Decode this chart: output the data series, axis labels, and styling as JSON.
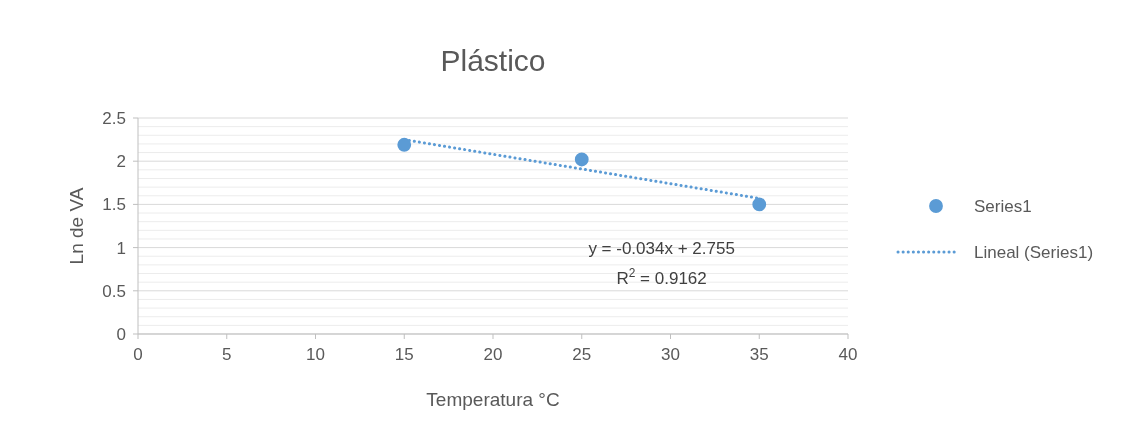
{
  "chart_data": {
    "type": "scatter",
    "title": "Plástico",
    "xlabel": "Temperatura °C",
    "ylabel": "Ln de VA",
    "xlim": [
      0,
      40
    ],
    "xticks": [
      0,
      5,
      10,
      15,
      20,
      25,
      30,
      35,
      40
    ],
    "ylim": [
      0,
      2.5
    ],
    "yticks": [
      0,
      {
        "value": 0.1,
        "label": null
      },
      {
        "value": 0.2,
        "label": null
      },
      {
        "value": 0.3,
        "label": null
      },
      {
        "value": 0.4,
        "label": null
      },
      0.5,
      {
        "value": 0.6,
        "label": null
      },
      {
        "value": 0.7,
        "label": null
      },
      {
        "value": 0.8,
        "label": null
      },
      {
        "value": 0.9,
        "label": null
      },
      1,
      {
        "value": 1.1,
        "label": null
      },
      {
        "value": 1.2,
        "label": null
      },
      {
        "value": 1.3,
        "label": null
      },
      {
        "value": 1.4,
        "label": null
      },
      1.5,
      {
        "value": 1.6,
        "label": null
      },
      {
        "value": 1.7,
        "label": null
      },
      {
        "value": 1.8,
        "label": null
      },
      {
        "value": 1.9,
        "label": null
      },
      2,
      {
        "value": 2.1,
        "label": null
      },
      {
        "value": 2.2,
        "label": null
      },
      {
        "value": 2.3,
        "label": null
      },
      {
        "value": 2.4,
        "label": null
      },
      2.5
    ],
    "grid": "y",
    "legend": "right",
    "marker": "circle",
    "series": [
      {
        "name": "Series1",
        "color": "#5b9bd5",
        "x": [
          15,
          25,
          35
        ],
        "values": [
          2.19,
          2.02,
          1.5
        ]
      },
      {
        "name": "Lineal (Series1)",
        "type": "line",
        "line_style": "dotted",
        "marker": "none",
        "color": "#5b9bd5",
        "x": [
          15,
          35
        ],
        "values": [
          2.25,
          1.57
        ]
      }
    ],
    "annotations": [
      "y = -0.034x + 2.755",
      "R$^{2}$ = 0.9162"
    ]
  }
}
